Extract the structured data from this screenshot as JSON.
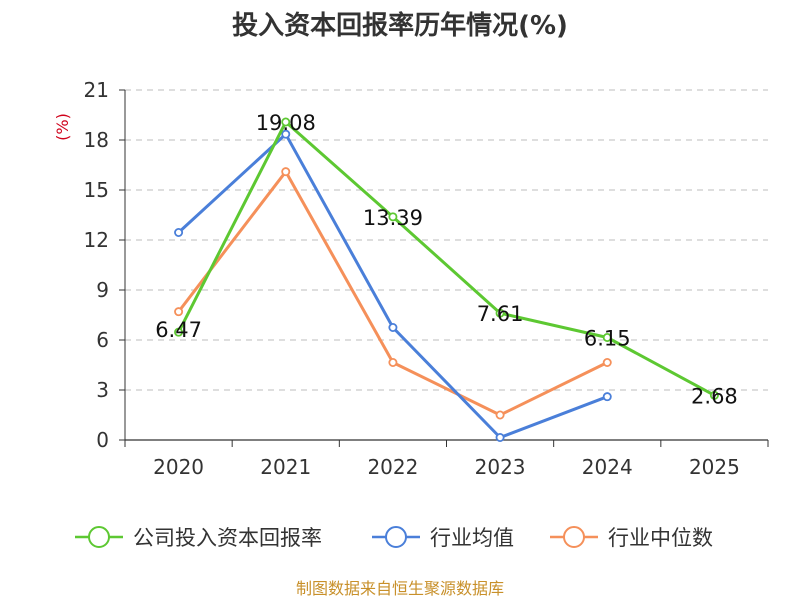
{
  "chart_data": {
    "type": "line",
    "title": "投入资本回报率历年情况(%)",
    "ylabel": "(%)",
    "xlabel": "",
    "categories": [
      "2020",
      "2021",
      "2022",
      "2023",
      "2024",
      "2025"
    ],
    "ylim": [
      0,
      21
    ],
    "yticks": [
      0,
      3,
      6,
      9,
      12,
      15,
      18,
      21
    ],
    "grid": true,
    "legend_position": "bottom",
    "series": [
      {
        "name": "公司投入资本回报率",
        "color": "#5dc832",
        "values": [
          6.47,
          19.08,
          13.39,
          7.61,
          6.15,
          2.68
        ],
        "labels": [
          "6.47",
          "19.08",
          "13.39",
          "7.61",
          "6.15",
          "2.68"
        ]
      },
      {
        "name": "行业均值",
        "color": "#4a7fd9",
        "values": [
          12.45,
          18.35,
          6.75,
          0.15,
          2.6,
          null
        ]
      },
      {
        "name": "行业中位数",
        "color": "#f5905a",
        "values": [
          7.7,
          16.1,
          4.65,
          1.5,
          4.65,
          null
        ]
      }
    ],
    "source": "制图数据来自恒生聚源数据库"
  }
}
